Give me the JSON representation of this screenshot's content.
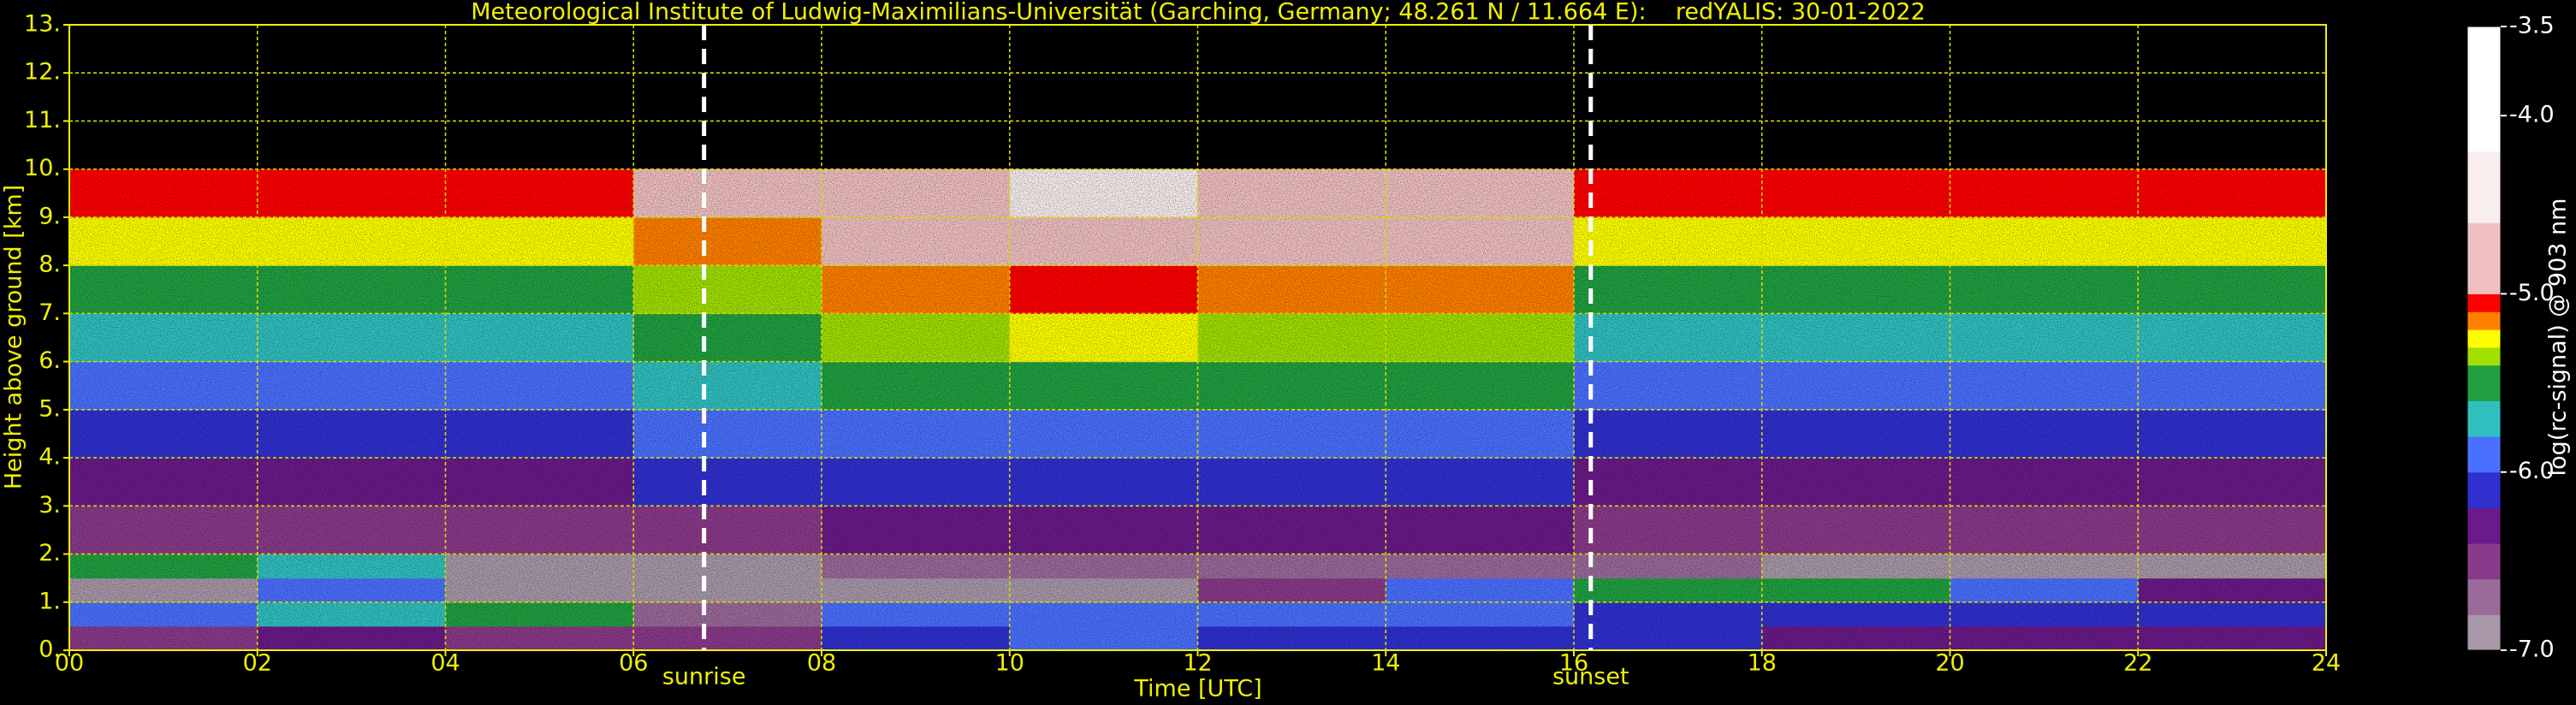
{
  "chart_data": {
    "type": "heatmap",
    "title": "Meteorological Institute of Ludwig-Maximilians-Universität (Garching, Germany; 48.261 N / 11.664 E):    redYALIS: 30-01-2022",
    "x_label": "Time [UTC]",
    "y_label": "Height above ground [km]",
    "colorbar_label": "log(rc-signal) @ 903 nm",
    "xlim": [
      0,
      24
    ],
    "xticks": [
      {
        "value": 0,
        "label": "00"
      },
      {
        "value": 2,
        "label": "02"
      },
      {
        "value": 4,
        "label": "04"
      },
      {
        "value": 6,
        "label": "06"
      },
      {
        "value": 8,
        "label": "08"
      },
      {
        "value": 10,
        "label": "10"
      },
      {
        "value": 12,
        "label": "12"
      },
      {
        "value": 14,
        "label": "14"
      },
      {
        "value": 16,
        "label": "16"
      },
      {
        "value": 18,
        "label": "18"
      },
      {
        "value": 20,
        "label": "20"
      },
      {
        "value": 22,
        "label": "22"
      },
      {
        "value": 24,
        "label": "24"
      }
    ],
    "ylim": [
      0,
      13
    ],
    "yticks": [
      {
        "value": 0,
        "label": "0."
      },
      {
        "value": 1,
        "label": "1."
      },
      {
        "value": 2,
        "label": "2."
      },
      {
        "value": 3,
        "label": "3."
      },
      {
        "value": 4,
        "label": "4."
      },
      {
        "value": 5,
        "label": "5."
      },
      {
        "value": 6,
        "label": "6."
      },
      {
        "value": 7,
        "label": "7."
      },
      {
        "value": 8,
        "label": "8."
      },
      {
        "value": 9,
        "label": "9."
      },
      {
        "value": 10,
        "label": "10."
      },
      {
        "value": 11,
        "label": "11."
      },
      {
        "value": 12,
        "label": "12."
      },
      {
        "value": 13,
        "label": "13."
      }
    ],
    "clim": [
      -7,
      -3.5
    ],
    "cticks": [
      -3.5,
      {
        "value": -4,
        "label": "-4.0"
      },
      {
        "value": -5,
        "label": "-5.0"
      },
      {
        "value": -6,
        "label": "-6.0"
      },
      {
        "value": -7,
        "label": "-7.0"
      }
    ],
    "grid": true,
    "grid_color": "#d8d800",
    "text_color": "#f0f000",
    "background": "#000000",
    "colormap": [
      {
        "value": -7.0,
        "color": "#a898a8"
      },
      {
        "value": -6.8,
        "color": "#9a6a9a"
      },
      {
        "value": -6.6,
        "color": "#8a3a8a"
      },
      {
        "value": -6.4,
        "color": "#6a1a8a"
      },
      {
        "value": -6.2,
        "color": "#3030d0"
      },
      {
        "value": -6.0,
        "color": "#4a70ff"
      },
      {
        "value": -5.8,
        "color": "#30c0c0"
      },
      {
        "value": -5.6,
        "color": "#20a040"
      },
      {
        "value": -5.4,
        "color": "#a0e000"
      },
      {
        "value": -5.3,
        "color": "#ffff00"
      },
      {
        "value": -5.2,
        "color": "#ff8000"
      },
      {
        "value": -5.1,
        "color": "#ff0000"
      },
      {
        "value": -5.0,
        "color": "#f0c0c0"
      },
      {
        "value": -4.6,
        "color": "#f8eeee"
      },
      {
        "value": -4.2,
        "color": "#ffffff"
      }
    ],
    "x_edges": [
      0,
      2,
      4,
      6,
      8,
      10,
      12,
      14,
      16,
      18,
      20,
      22,
      24
    ],
    "y_edges": [
      0,
      0.5,
      1,
      1.5,
      2,
      3,
      4,
      5,
      6,
      7,
      8,
      9,
      10
    ],
    "z": [
      [
        -6.5,
        -6.3,
        -6.5,
        -6.6,
        -6.2,
        -6.0,
        -6.1,
        -6.1,
        -6.2,
        -6.3,
        -6.3,
        -6.3
      ],
      [
        -6.0,
        -5.8,
        -5.5,
        -6.8,
        -6.0,
        -6.0,
        -6.0,
        -6.0,
        -6.1,
        -6.1,
        -6.1,
        -6.1
      ],
      [
        -6.9,
        -6.0,
        -6.9,
        -7.0,
        -6.9,
        -6.9,
        -6.5,
        -6.0,
        -5.5,
        -5.5,
        -6.0,
        -6.3
      ],
      [
        -5.5,
        -5.8,
        -6.9,
        -6.9,
        -6.8,
        -6.7,
        -6.7,
        -6.7,
        -6.8,
        -6.9,
        -6.9,
        -6.9
      ],
      [
        -6.6,
        -6.6,
        -6.6,
        -6.5,
        -6.4,
        -6.4,
        -6.4,
        -6.4,
        -6.6,
        -6.6,
        -6.6,
        -6.6
      ],
      [
        -6.3,
        -6.3,
        -6.3,
        -6.2,
        -6.1,
        -6.1,
        -6.1,
        -6.1,
        -6.3,
        -6.3,
        -6.3,
        -6.3
      ],
      [
        -6.1,
        -6.1,
        -6.1,
        -6.0,
        -5.9,
        -5.9,
        -5.9,
        -5.9,
        -6.1,
        -6.1,
        -6.1,
        -6.1
      ],
      [
        -5.9,
        -5.9,
        -5.9,
        -5.8,
        -5.6,
        -5.6,
        -5.6,
        -5.6,
        -5.9,
        -5.9,
        -5.9,
        -5.9
      ],
      [
        -5.7,
        -5.7,
        -5.7,
        -5.6,
        -5.4,
        -5.3,
        -5.4,
        -5.4,
        -5.7,
        -5.7,
        -5.7,
        -5.7
      ],
      [
        -5.5,
        -5.5,
        -5.5,
        -5.4,
        -5.2,
        -5.1,
        -5.2,
        -5.2,
        -5.5,
        -5.5,
        -5.5,
        -5.5
      ],
      [
        -5.3,
        -5.3,
        -5.3,
        -5.2,
        -5.0,
        -4.9,
        -5.0,
        -5.0,
        -5.3,
        -5.3,
        -5.3,
        -5.3
      ],
      [
        -5.1,
        -5.1,
        -5.1,
        -5.0,
        -4.7,
        -4.6,
        -4.7,
        -4.8,
        -5.1,
        -5.1,
        -5.1,
        -5.1
      ]
    ],
    "annotations": [
      {
        "text": "sunrise",
        "x": 6.75
      },
      {
        "text": "sunset",
        "x": 16.18
      }
    ]
  }
}
